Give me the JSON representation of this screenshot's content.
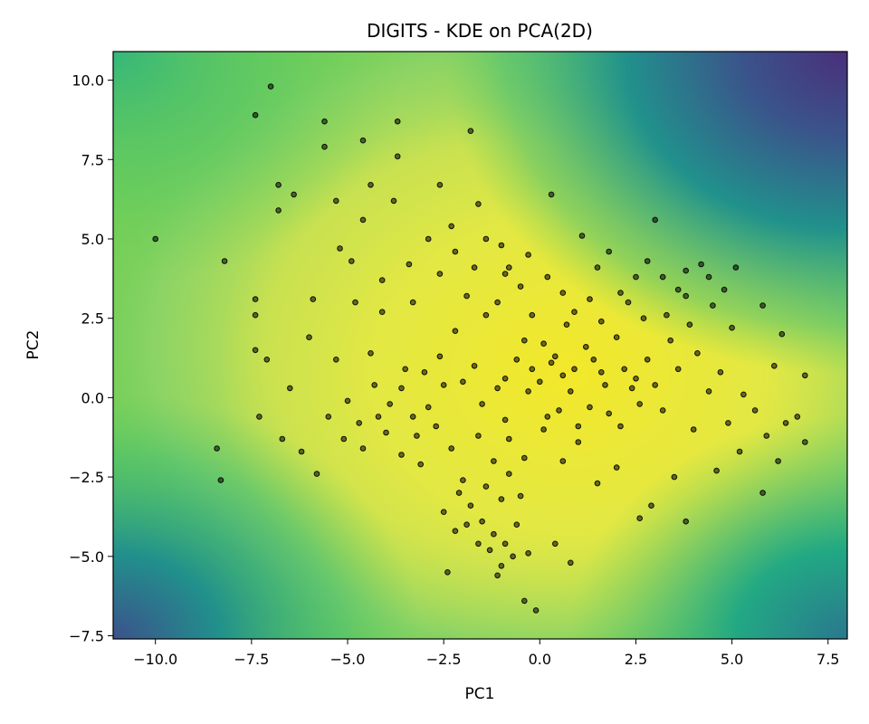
{
  "chart_data": {
    "type": "scatter",
    "title": "DIGITS - KDE on PCA(2D)",
    "xlabel": "PC1",
    "ylabel": "PC2",
    "xlim": [
      -11.1,
      8.0
    ],
    "ylim": [
      -7.6,
      10.9
    ],
    "xticks": [
      -10.0,
      -7.5,
      -5.0,
      -2.5,
      0.0,
      2.5,
      5.0,
      7.5
    ],
    "yticks": [
      -7.5,
      -5.0,
      -2.5,
      0.0,
      2.5,
      5.0,
      7.5,
      10.0
    ],
    "xtick_labels": [
      "−10.0",
      "−7.5",
      "−5.0",
      "−2.5",
      "0.0",
      "2.5",
      "5.0",
      "7.5"
    ],
    "ytick_labels": [
      "−7.5",
      "−5.0",
      "−2.5",
      "0.0",
      "2.5",
      "5.0",
      "7.5",
      "10.0"
    ],
    "grid": false,
    "background": "kde-contour",
    "colormap": [
      "#440154",
      "#3b528b",
      "#21918c",
      "#5ec962",
      "#aadc32",
      "#fde725"
    ],
    "point_color": "#000000",
    "points": [
      [
        -10.0,
        5.0
      ],
      [
        -8.2,
        4.3
      ],
      [
        -7.0,
        9.8
      ],
      [
        -7.4,
        8.9
      ],
      [
        -5.6,
        8.7
      ],
      [
        -5.6,
        7.9
      ],
      [
        -4.6,
        8.1
      ],
      [
        -3.7,
        8.7
      ],
      [
        -3.7,
        7.6
      ],
      [
        -1.8,
        8.4
      ],
      [
        -6.8,
        6.7
      ],
      [
        -6.8,
        5.9
      ],
      [
        -6.4,
        6.4
      ],
      [
        -5.3,
        6.2
      ],
      [
        -3.8,
        6.2
      ],
      [
        -4.4,
        6.7
      ],
      [
        -2.6,
        6.7
      ],
      [
        -4.6,
        5.6
      ],
      [
        -1.6,
        6.1
      ],
      [
        0.3,
        6.4
      ],
      [
        -7.4,
        3.1
      ],
      [
        -7.4,
        2.6
      ],
      [
        -5.9,
        3.1
      ],
      [
        -8.4,
        -1.6
      ],
      [
        -8.3,
        -2.6
      ],
      [
        -7.3,
        -0.6
      ],
      [
        -6.7,
        -1.3
      ],
      [
        -6.5,
        0.3
      ],
      [
        -7.4,
        1.5
      ],
      [
        -7.1,
        1.2
      ],
      [
        -5.2,
        4.7
      ],
      [
        -4.9,
        4.3
      ],
      [
        -4.1,
        3.7
      ],
      [
        -4.8,
        3.0
      ],
      [
        -4.1,
        2.7
      ],
      [
        -4.4,
        1.4
      ],
      [
        -3.3,
        3.0
      ],
      [
        -2.9,
        5.0
      ],
      [
        -2.2,
        4.6
      ],
      [
        -1.4,
        5.0
      ],
      [
        -1.0,
        4.8
      ],
      [
        -0.3,
        4.5
      ],
      [
        -0.8,
        4.1
      ],
      [
        1.1,
        5.1
      ],
      [
        1.8,
        4.6
      ],
      [
        3.0,
        5.6
      ],
      [
        4.2,
        4.2
      ],
      [
        3.8,
        4.0
      ],
      [
        4.4,
        3.8
      ],
      [
        5.1,
        4.1
      ],
      [
        2.5,
        3.8
      ],
      [
        3.2,
        3.8
      ],
      [
        2.1,
        3.3
      ],
      [
        1.3,
        3.1
      ],
      [
        0.6,
        3.3
      ],
      [
        3.8,
        3.2
      ],
      [
        5.8,
        2.9
      ],
      [
        6.3,
        2.0
      ],
      [
        6.1,
        1.0
      ],
      [
        6.9,
        0.7
      ],
      [
        -6.0,
        1.9
      ],
      [
        -5.3,
        1.2
      ],
      [
        -5.5,
        -0.6
      ],
      [
        -6.2,
        -1.7
      ],
      [
        -5.8,
        -2.4
      ],
      [
        -5.0,
        -0.1
      ],
      [
        -4.6,
        -1.6
      ],
      [
        -4.2,
        -0.6
      ],
      [
        -3.6,
        -1.8
      ],
      [
        -3.3,
        -0.6
      ],
      [
        -3.0,
        0.8
      ],
      [
        -2.6,
        1.3
      ],
      [
        -2.2,
        2.1
      ],
      [
        -1.7,
        1.0
      ],
      [
        -1.4,
        2.6
      ],
      [
        -0.9,
        0.6
      ],
      [
        -0.4,
        1.8
      ],
      [
        0.0,
        0.5
      ],
      [
        0.4,
        1.3
      ],
      [
        0.8,
        0.2
      ],
      [
        1.2,
        1.6
      ],
      [
        1.6,
        0.8
      ],
      [
        2.0,
        1.9
      ],
      [
        2.4,
        0.3
      ],
      [
        2.8,
        1.2
      ],
      [
        3.2,
        -0.4
      ],
      [
        3.6,
        0.9
      ],
      [
        4.0,
        -1.0
      ],
      [
        4.4,
        0.2
      ],
      [
        4.9,
        -0.8
      ],
      [
        5.2,
        -1.7
      ],
      [
        5.6,
        -0.4
      ],
      [
        5.9,
        -1.2
      ],
      [
        6.4,
        -0.8
      ],
      [
        6.7,
        -0.6
      ],
      [
        6.9,
        -1.4
      ],
      [
        6.2,
        -2.0
      ],
      [
        5.8,
        -3.0
      ],
      [
        4.6,
        -2.3
      ],
      [
        3.8,
        -3.9
      ],
      [
        3.5,
        -2.5
      ],
      [
        2.9,
        -3.4
      ],
      [
        2.6,
        -3.8
      ],
      [
        2.0,
        -2.2
      ],
      [
        1.5,
        -2.7
      ],
      [
        1.0,
        -1.4
      ],
      [
        0.6,
        -2.0
      ],
      [
        0.1,
        -1.0
      ],
      [
        -0.4,
        -1.9
      ],
      [
        -0.9,
        -0.7
      ],
      [
        -1.2,
        -2.0
      ],
      [
        -1.6,
        -1.2
      ],
      [
        -2.0,
        -2.6
      ],
      [
        -2.3,
        -1.6
      ],
      [
        -2.7,
        -0.9
      ],
      [
        -3.1,
        -2.1
      ],
      [
        -1.8,
        -3.4
      ],
      [
        -1.5,
        -3.9
      ],
      [
        -1.2,
        -4.3
      ],
      [
        -0.9,
        -4.6
      ],
      [
        -0.6,
        -4.0
      ],
      [
        -1.0,
        -3.2
      ],
      [
        -1.9,
        -4.0
      ],
      [
        -2.1,
        -3.0
      ],
      [
        -0.5,
        -3.1
      ],
      [
        -0.3,
        -4.9
      ],
      [
        -1.1,
        -5.6
      ],
      [
        -0.4,
        -6.4
      ],
      [
        -0.1,
        -6.7
      ],
      [
        0.8,
        -5.2
      ],
      [
        -1.3,
        -4.8
      ],
      [
        -0.7,
        -5.0
      ],
      [
        -2.2,
        -4.2
      ],
      [
        -1.6,
        -4.6
      ],
      [
        -1.0,
        -5.3
      ],
      [
        -2.5,
        -3.6
      ],
      [
        -1.4,
        -2.8
      ],
      [
        -0.8,
        -2.4
      ],
      [
        -2.4,
        -5.5
      ],
      [
        0.4,
        -4.6
      ],
      [
        -0.2,
        0.9
      ],
      [
        0.3,
        1.1
      ],
      [
        0.5,
        -0.4
      ],
      [
        0.9,
        0.9
      ],
      [
        1.3,
        -0.3
      ],
      [
        1.7,
        0.4
      ],
      [
        2.1,
        -0.9
      ],
      [
        2.5,
        0.6
      ],
      [
        0.2,
        -0.6
      ],
      [
        -0.3,
        0.2
      ],
      [
        0.6,
        0.7
      ],
      [
        1.0,
        -0.9
      ],
      [
        1.4,
        1.2
      ],
      [
        1.8,
        -0.5
      ],
      [
        2.2,
        0.9
      ],
      [
        2.6,
        -0.2
      ],
      [
        3.0,
        0.4
      ],
      [
        0.1,
        1.7
      ],
      [
        -0.6,
        1.2
      ],
      [
        0.7,
        2.3
      ],
      [
        -3.6,
        0.3
      ],
      [
        -3.9,
        -0.2
      ],
      [
        -4.3,
        0.4
      ],
      [
        -4.7,
        -0.8
      ],
      [
        -5.1,
        -1.3
      ],
      [
        -2.9,
        -0.3
      ],
      [
        -2.5,
        0.4
      ],
      [
        -3.2,
        -1.2
      ],
      [
        -4.0,
        -1.1
      ],
      [
        -3.5,
        0.9
      ],
      [
        -2.0,
        0.5
      ],
      [
        -1.5,
        -0.2
      ],
      [
        -1.1,
        0.3
      ],
      [
        -0.8,
        -1.3
      ],
      [
        -1.9,
        3.2
      ],
      [
        -1.1,
        3.0
      ],
      [
        -0.2,
        2.6
      ],
      [
        0.9,
        2.7
      ],
      [
        1.6,
        2.4
      ],
      [
        2.7,
        2.5
      ],
      [
        3.4,
        1.8
      ],
      [
        4.1,
        1.4
      ],
      [
        4.7,
        0.8
      ],
      [
        5.3,
        0.1
      ],
      [
        5.0,
        2.2
      ],
      [
        4.5,
        2.9
      ],
      [
        3.9,
        2.3
      ],
      [
        3.3,
        2.6
      ],
      [
        2.3,
        3.0
      ],
      [
        -0.5,
        3.5
      ],
      [
        -1.7,
        4.1
      ],
      [
        -2.6,
        3.9
      ],
      [
        -3.4,
        4.2
      ],
      [
        -0.9,
        3.9
      ],
      [
        0.2,
        3.8
      ],
      [
        1.5,
        4.1
      ],
      [
        2.8,
        4.3
      ],
      [
        3.6,
        3.4
      ],
      [
        4.8,
        3.4
      ],
      [
        -2.3,
        5.4
      ]
    ]
  }
}
